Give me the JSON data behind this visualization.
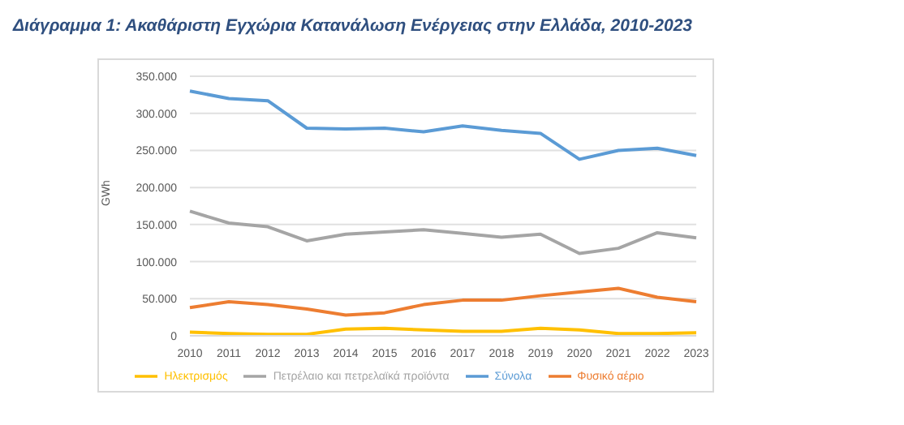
{
  "chart_data": {
    "type": "line",
    "title": "Διάγραμμα 1: Ακαθάριστη Εγχώρια Κατανάλωση Ενέργειας στην Ελλάδα, 2010-2023",
    "ylabel": "GWh",
    "categories": [
      "2010",
      "2011",
      "2012",
      "2013",
      "2014",
      "2015",
      "2016",
      "2017",
      "2018",
      "2019",
      "2020",
      "2021",
      "2022",
      "2023"
    ],
    "series": [
      {
        "name": "Σύνολα",
        "color": "#5b9bd5",
        "values": [
          330000,
          320000,
          317000,
          280000,
          279000,
          280000,
          275000,
          283000,
          277000,
          273000,
          238000,
          250000,
          253000,
          243000
        ]
      },
      {
        "name": "Φυσικό αέριο",
        "color": "#ed7d31",
        "values": [
          38000,
          46000,
          42000,
          36000,
          28000,
          31000,
          42000,
          48000,
          48000,
          54000,
          59000,
          64000,
          52000,
          46000
        ]
      },
      {
        "name": "Πετρέλαιο και πετρελαϊκά προϊόντα",
        "color": "#a5a5a5",
        "values": [
          168000,
          152000,
          147000,
          128000,
          137000,
          140000,
          143000,
          138000,
          133000,
          137000,
          111000,
          118000,
          139000,
          132000
        ]
      },
      {
        "name": "Ηλεκτρισμός",
        "color": "#ffc000",
        "values": [
          5000,
          3000,
          2000,
          2000,
          9000,
          10000,
          8000,
          6000,
          6000,
          10000,
          8000,
          3000,
          3000,
          4000
        ]
      }
    ],
    "ylim": [
      0,
      350000
    ],
    "yticks": [
      {
        "value": 0,
        "label": "0"
      },
      {
        "value": 50000,
        "label": "50.000"
      },
      {
        "value": 100000,
        "label": "100.000"
      },
      {
        "value": 150000,
        "label": "150.000"
      },
      {
        "value": 200000,
        "label": "200.000"
      },
      {
        "value": 250000,
        "label": "250.000"
      },
      {
        "value": 300000,
        "label": "300.000"
      },
      {
        "value": 350000,
        "label": "350.000"
      }
    ],
    "grid": "y",
    "legend": "bottom",
    "marker": "none",
    "line_style": "solid"
  }
}
